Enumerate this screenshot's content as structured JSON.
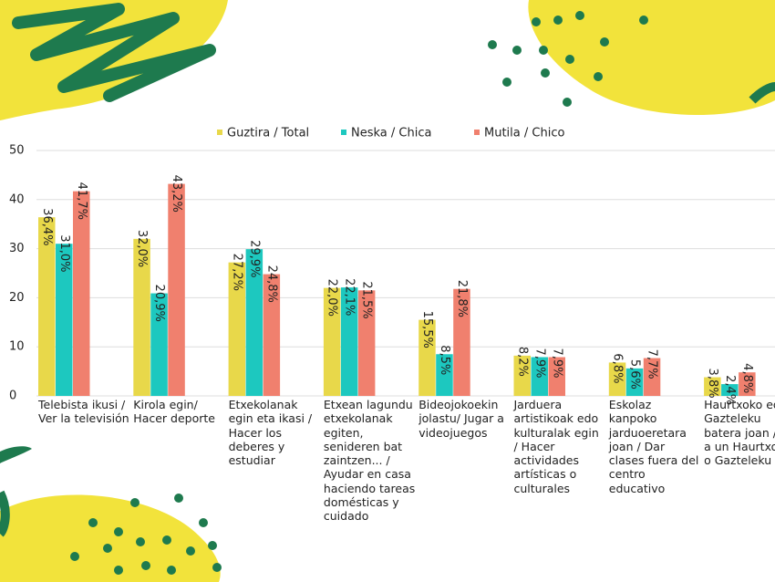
{
  "chart_data": {
    "type": "bar",
    "categories": [
      "Telebista ikusi / Ver la televisión",
      "Kirola egin/ Hacer deporte",
      "Etxekolanak egin eta ikasi / Hacer los deberes y estudiar",
      "Etxean lagundu etxekolanak egiten, senideren bat zaintzen... / Ayudar en casa haciendo tareas domésticas y cuidado",
      "Bideojokoekin jolastu/ Jugar a videojuegos",
      "Jarduera artistikoak edo kulturalak egin / Hacer actividades artísticas o culturales",
      "Eskolaz kanpoko jarduoeretara joan / Dar clases fuera del centro educativo",
      "Haurtxoko edo Gazteleku batera joan / Ir a un Haurtxoko o Gazteleku"
    ],
    "series": [
      {
        "name": "Guztira / Total",
        "color": "#e8d84a",
        "values": [
          36.4,
          32.0,
          27.2,
          22.0,
          15.5,
          8.2,
          6.8,
          3.8
        ],
        "value_labels": [
          "36,4%",
          "32,0%",
          "27,2%",
          "22,0%",
          "15,5%",
          "8,2%",
          "6,8%",
          "3,8%"
        ]
      },
      {
        "name": "Neska / Chica",
        "color": "#1dc8bf",
        "values": [
          31.0,
          20.9,
          29.9,
          22.1,
          8.5,
          7.9,
          5.6,
          2.4
        ],
        "value_labels": [
          "31,0%",
          "20,9%",
          "29,9%",
          "22,1%",
          "8,5%",
          "7,9%",
          "5,6%",
          "2,4%"
        ]
      },
      {
        "name": "Mutila / Chico",
        "color": "#f0806e",
        "values": [
          41.7,
          43.2,
          24.8,
          21.5,
          21.8,
          7.9,
          7.7,
          4.8
        ],
        "value_labels": [
          "41,7%",
          "43,2%",
          "24,8%",
          "21,5%",
          "21,8%",
          "7,9%",
          "7,7%",
          "4,8%"
        ]
      }
    ],
    "ylim": [
      0,
      50
    ],
    "yticks": [
      0,
      10,
      20,
      30,
      40,
      50
    ],
    "grid": true,
    "legend": "top"
  }
}
